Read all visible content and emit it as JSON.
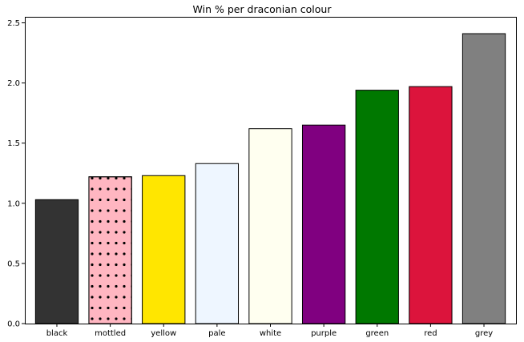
{
  "chart_data": {
    "type": "bar",
    "title": "Win % per draconian colour",
    "xlabel": "",
    "ylabel": "",
    "ylim": [
      0,
      2.55
    ],
    "yticks": [
      0.0,
      0.5,
      1.0,
      1.5,
      2.0,
      2.5
    ],
    "ytick_labels": [
      "0.0",
      "0.5",
      "1.0",
      "1.5",
      "2.0",
      "2.5"
    ],
    "categories": [
      "black",
      "mottled",
      "yellow",
      "pale",
      "white",
      "purple",
      "green",
      "red",
      "grey"
    ],
    "values": [
      1.03,
      1.22,
      1.23,
      1.33,
      1.62,
      1.65,
      1.94,
      1.97,
      2.41
    ],
    "bar_colors": [
      "#333333",
      "#ffb6c1",
      "#ffe600",
      "#eef6ff",
      "#fffff0",
      "#800080",
      "#007800",
      "#dc143c",
      "#808080"
    ],
    "bar_patterns": [
      "none",
      "dots",
      "none",
      "none",
      "none",
      "none",
      "none",
      "none",
      "none"
    ],
    "edge_color": "#000000",
    "grid": false
  }
}
